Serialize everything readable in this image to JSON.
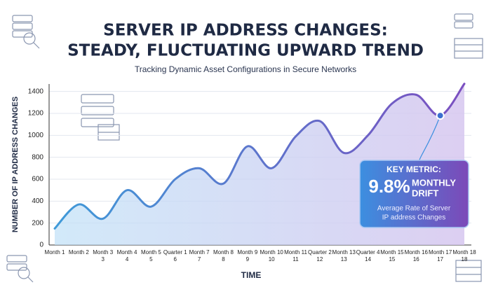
{
  "chart_data": {
    "type": "line",
    "title": [
      "SERVER IP ADDRESS CHANGES:",
      "STEADY, FLUCTUATING UPWARD TREND"
    ],
    "subtitle": "Tracking Dynamic Asset Configurations in Secure Networks",
    "y_label": "NUMBER OF IP ADDRESS CHANGES",
    "x_label": "TIME",
    "categories": [
      "Month 1",
      "Month 2",
      "Month 3",
      "Month 4",
      "Month 5",
      "Quarter 1",
      "Month 7",
      "Month 8",
      "Month 9",
      "Month 10",
      "Month 11",
      "Quarter 2",
      "Month 13",
      "Quarter 4",
      "Month 15",
      "Month 16",
      "Month 17",
      "Month 18"
    ],
    "category_numbers": [
      null,
      null,
      "3",
      "4",
      "5",
      "6",
      "7",
      "8",
      "9",
      "10",
      "11",
      "12",
      "13",
      "14",
      "15",
      "16",
      "17",
      "18"
    ],
    "series": [
      {
        "name": "IP Address Changes",
        "color": "#6a5fd0",
        "values": [
          150,
          370,
          240,
          500,
          350,
          600,
          700,
          560,
          900,
          700,
          990,
          1130,
          840,
          1000,
          1290,
          1370,
          1180,
          1470
        ]
      }
    ],
    "ylim": [
      0,
      1500
    ],
    "yticks": [
      0,
      200,
      400,
      600,
      800,
      1000,
      1200,
      1400
    ],
    "grid": true,
    "callout": {
      "heading": "KEY METRIC:",
      "figure": "9.8%",
      "figure_note": [
        "MONTHLY",
        "DRIFT"
      ],
      "text": [
        "Average Rate of Server",
        "IP address Changes"
      ]
    }
  }
}
